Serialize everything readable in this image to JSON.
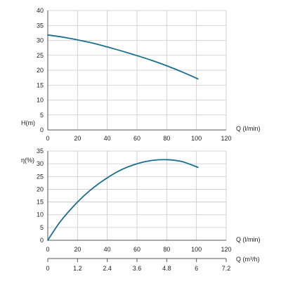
{
  "chart_data": [
    {
      "type": "line",
      "title": "",
      "ylabel": "H(m)",
      "xlabel": "Q (l/min)",
      "xlim": [
        0,
        120
      ],
      "ylim": [
        0,
        40
      ],
      "xticks": [
        "0",
        "20",
        "40",
        "60",
        "80",
        "100",
        "120"
      ],
      "yticks": [
        "0",
        "5",
        "10",
        "15",
        "20",
        "25",
        "30",
        "35",
        "40"
      ],
      "grid": true,
      "series": [
        {
          "color": "#1a6e8e",
          "x": [
            0,
            10,
            20,
            30,
            40,
            50,
            60,
            70,
            80,
            90,
            101
          ],
          "y": [
            31.8,
            31.1,
            30.2,
            29.1,
            27.8,
            26.4,
            24.9,
            23.3,
            21.5,
            19.5,
            17.1
          ]
        }
      ]
    },
    {
      "type": "line",
      "title": "",
      "ylabel": "η(%)",
      "xlabel": "Q (l/min)",
      "xlim": [
        0,
        120
      ],
      "ylim": [
        0,
        35
      ],
      "xticks": [
        "0",
        "20",
        "40",
        "60",
        "80",
        "100",
        "120"
      ],
      "yticks": [
        "0",
        "5",
        "10",
        "15",
        "20",
        "25",
        "30",
        "35"
      ],
      "secondary_xlabel": "Q (m³/h)",
      "secondary_xlim": [
        0,
        7.2
      ],
      "secondary_xticks": [
        "0",
        "1.2",
        "2.4",
        "3.6",
        "4.8",
        "6",
        "7.2"
      ],
      "grid": true,
      "series": [
        {
          "color": "#1a6e8e",
          "x": [
            0,
            5,
            10,
            20,
            30,
            40,
            50,
            60,
            70,
            80,
            90,
            101
          ],
          "y": [
            0,
            4.5,
            8.5,
            15.0,
            20.3,
            24.5,
            27.8,
            30.0,
            31.3,
            31.6,
            30.9,
            28.6
          ]
        }
      ]
    }
  ]
}
